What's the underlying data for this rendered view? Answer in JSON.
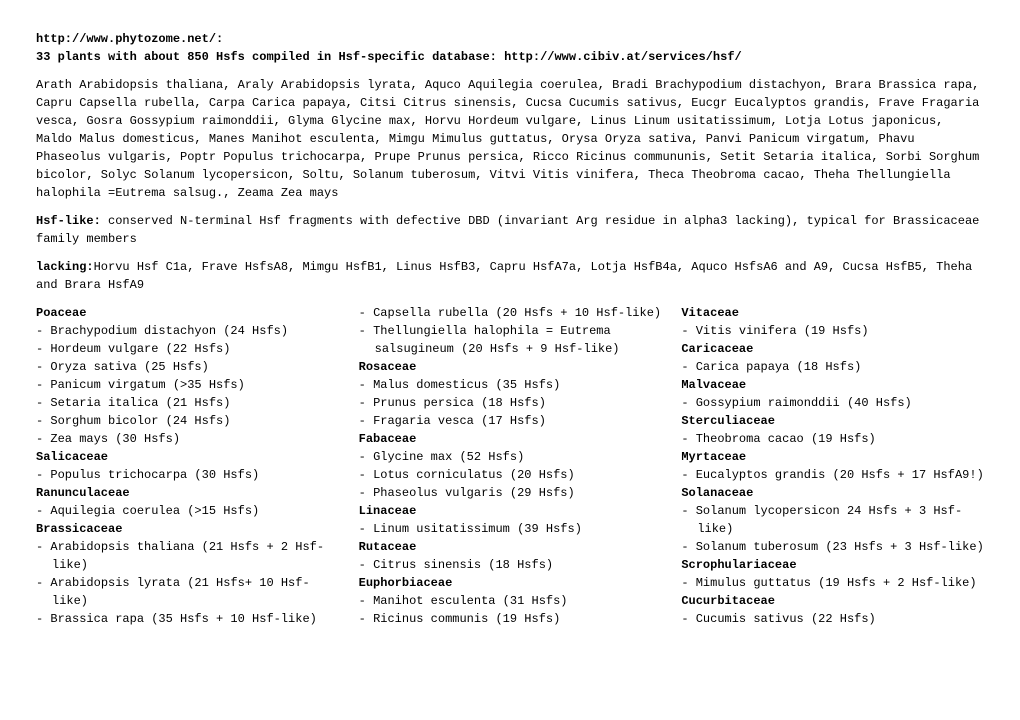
{
  "header": {
    "url": "http://www.phytozome.net/:",
    "title": "33 plants with about 850 Hsfs compiled in Hsf-specific database: http://www.cibiv.at/services/hsf/"
  },
  "species_list": "Arath Arabidopsis thaliana, Araly Arabidopsis lyrata, Aquco Aquilegia coerulea, Bradi Brachypodium distachyon, Brara Brassica rapa, Capru Capsella rubella, Carpa  Carica papaya, Citsi  Citrus sinensis, Cucsa Cucumis sativus, Eucgr Eucalyptos grandis, Frave Fragaria vesca, Gosra Gossypium raimonddii, Glyma Glycine max, Horvu Hordeum vulgare, Linus Linum usitatissimum, Lotja Lotus japonicus, Maldo Malus domesticus, Manes Manihot esculenta, Mimgu Mimulus guttatus, Orysa Oryza sativa, Panvi Panicum virgatum, Phavu Phaseolus vulgaris, Poptr Populus trichocarpa, Prupe Prunus persica, Ricco Ricinus commununis, Setit Setaria italica, Sorbi Sorghum bicolor, Solyc Solanum lycopersicon, Soltu, Solanum tuberosum, Vitvi Vitis vinifera, Theca Theobroma cacao, Theha Thellungiella halophila =Eutrema salsug., Zeama Zea mays",
  "hsf_like": {
    "label": "Hsf-like:",
    "text": " conserved N-terminal Hsf fragments with defective DBD (invariant Arg residue in alpha3 lacking), typical for Brassicaceae family members"
  },
  "lacking": {
    "label": "lacking:",
    "text": "Horvu Hsf C1a, Frave HsfsA8, Mimgu HsfB1, Linus HsfB3, Capru HsfA7a, Lotja HsfB4a, Aquco HsfsA6 and A9, Cucsa HsfB5, Theha and Brara HsfA9"
  },
  "families": [
    {
      "name": "Poaceae",
      "items": [
        "Brachypodium distachyon (24 Hsfs)",
        "Hordeum vulgare (22 Hsfs)",
        "Oryza sativa (25 Hsfs)",
        "Panicum virgatum (>35 Hsfs)",
        "Setaria italica (21 Hsfs)",
        "Sorghum bicolor (24 Hsfs)",
        "Zea mays (30 Hsfs)"
      ]
    },
    {
      "name": "Salicaceae",
      "items": [
        "Populus trichocarpa (30 Hsfs)"
      ]
    },
    {
      "name": "Ranunculaceae",
      "items": [
        "Aquilegia coerulea (>15 Hsfs)"
      ]
    },
    {
      "name": "Brassicaceae",
      "items": [
        "Arabidopsis thaliana (21 Hsfs + 2 Hsf-like)",
        "Arabidopsis lyrata (21 Hsfs+ 10 Hsf-like)",
        "Brassica rapa (35 Hsfs + 10 Hsf-like)",
        "Capsella rubella (20 Hsfs + 10 Hsf-like)",
        "Thellungiella halophila = Eutrema salsugineum (20 Hsfs + 9 Hsf-like)"
      ]
    },
    {
      "name": "Rosaceae",
      "items": [
        "Malus domesticus (35 Hsfs)",
        "Prunus persica (18 Hsfs)",
        "Fragaria vesca (17 Hsfs)"
      ]
    },
    {
      "name": "Fabaceae",
      "items": [
        "Glycine max (52 Hsfs)",
        "Lotus corniculatus (20 Hsfs)",
        "Phaseolus vulgaris  (29 Hsfs)"
      ]
    },
    {
      "name": "Linaceae",
      "items": [
        "Linum usitatissimum (39 Hsfs)"
      ]
    },
    {
      "name": "Rutaceae",
      "items": [
        "Citrus sinensis (18 Hsfs)"
      ]
    },
    {
      "name": "Euphorbiaceae",
      "items": [
        "Manihot esculenta (31 Hsfs)",
        "Ricinus communis (19 Hsfs)"
      ]
    },
    {
      "name": "Vitaceae",
      "items": [
        "Vitis vinifera (19 Hsfs)"
      ]
    },
    {
      "name": "Caricaceae",
      "items": [
        "Carica papaya (18 Hsfs)"
      ]
    },
    {
      "name": "Malvaceae",
      "items": [
        "Gossypium raimonddii (40 Hsfs)"
      ]
    },
    {
      "name": "Sterculiaceae",
      "items": [
        "Theobroma cacao (19 Hsfs)"
      ]
    },
    {
      "name": "Myrtaceae",
      "items": [
        "Eucalyptos grandis (20 Hsfs + 17 HsfA9!)"
      ]
    },
    {
      "name": "Solanaceae",
      "items": [
        "Solanum lycopersicon 24 Hsfs + 3 Hsf-like)",
        "Solanum tuberosum (23 Hsfs + 3 Hsf-like)"
      ]
    },
    {
      "name": "Scrophulariaceae",
      "items": [
        "Mimulus guttatus (19 Hsfs + 2 Hsf-like)"
      ]
    },
    {
      "name": "Cucurbitaceae",
      "items": [
        "Cucumis sativus (22 Hsfs)"
      ]
    }
  ]
}
